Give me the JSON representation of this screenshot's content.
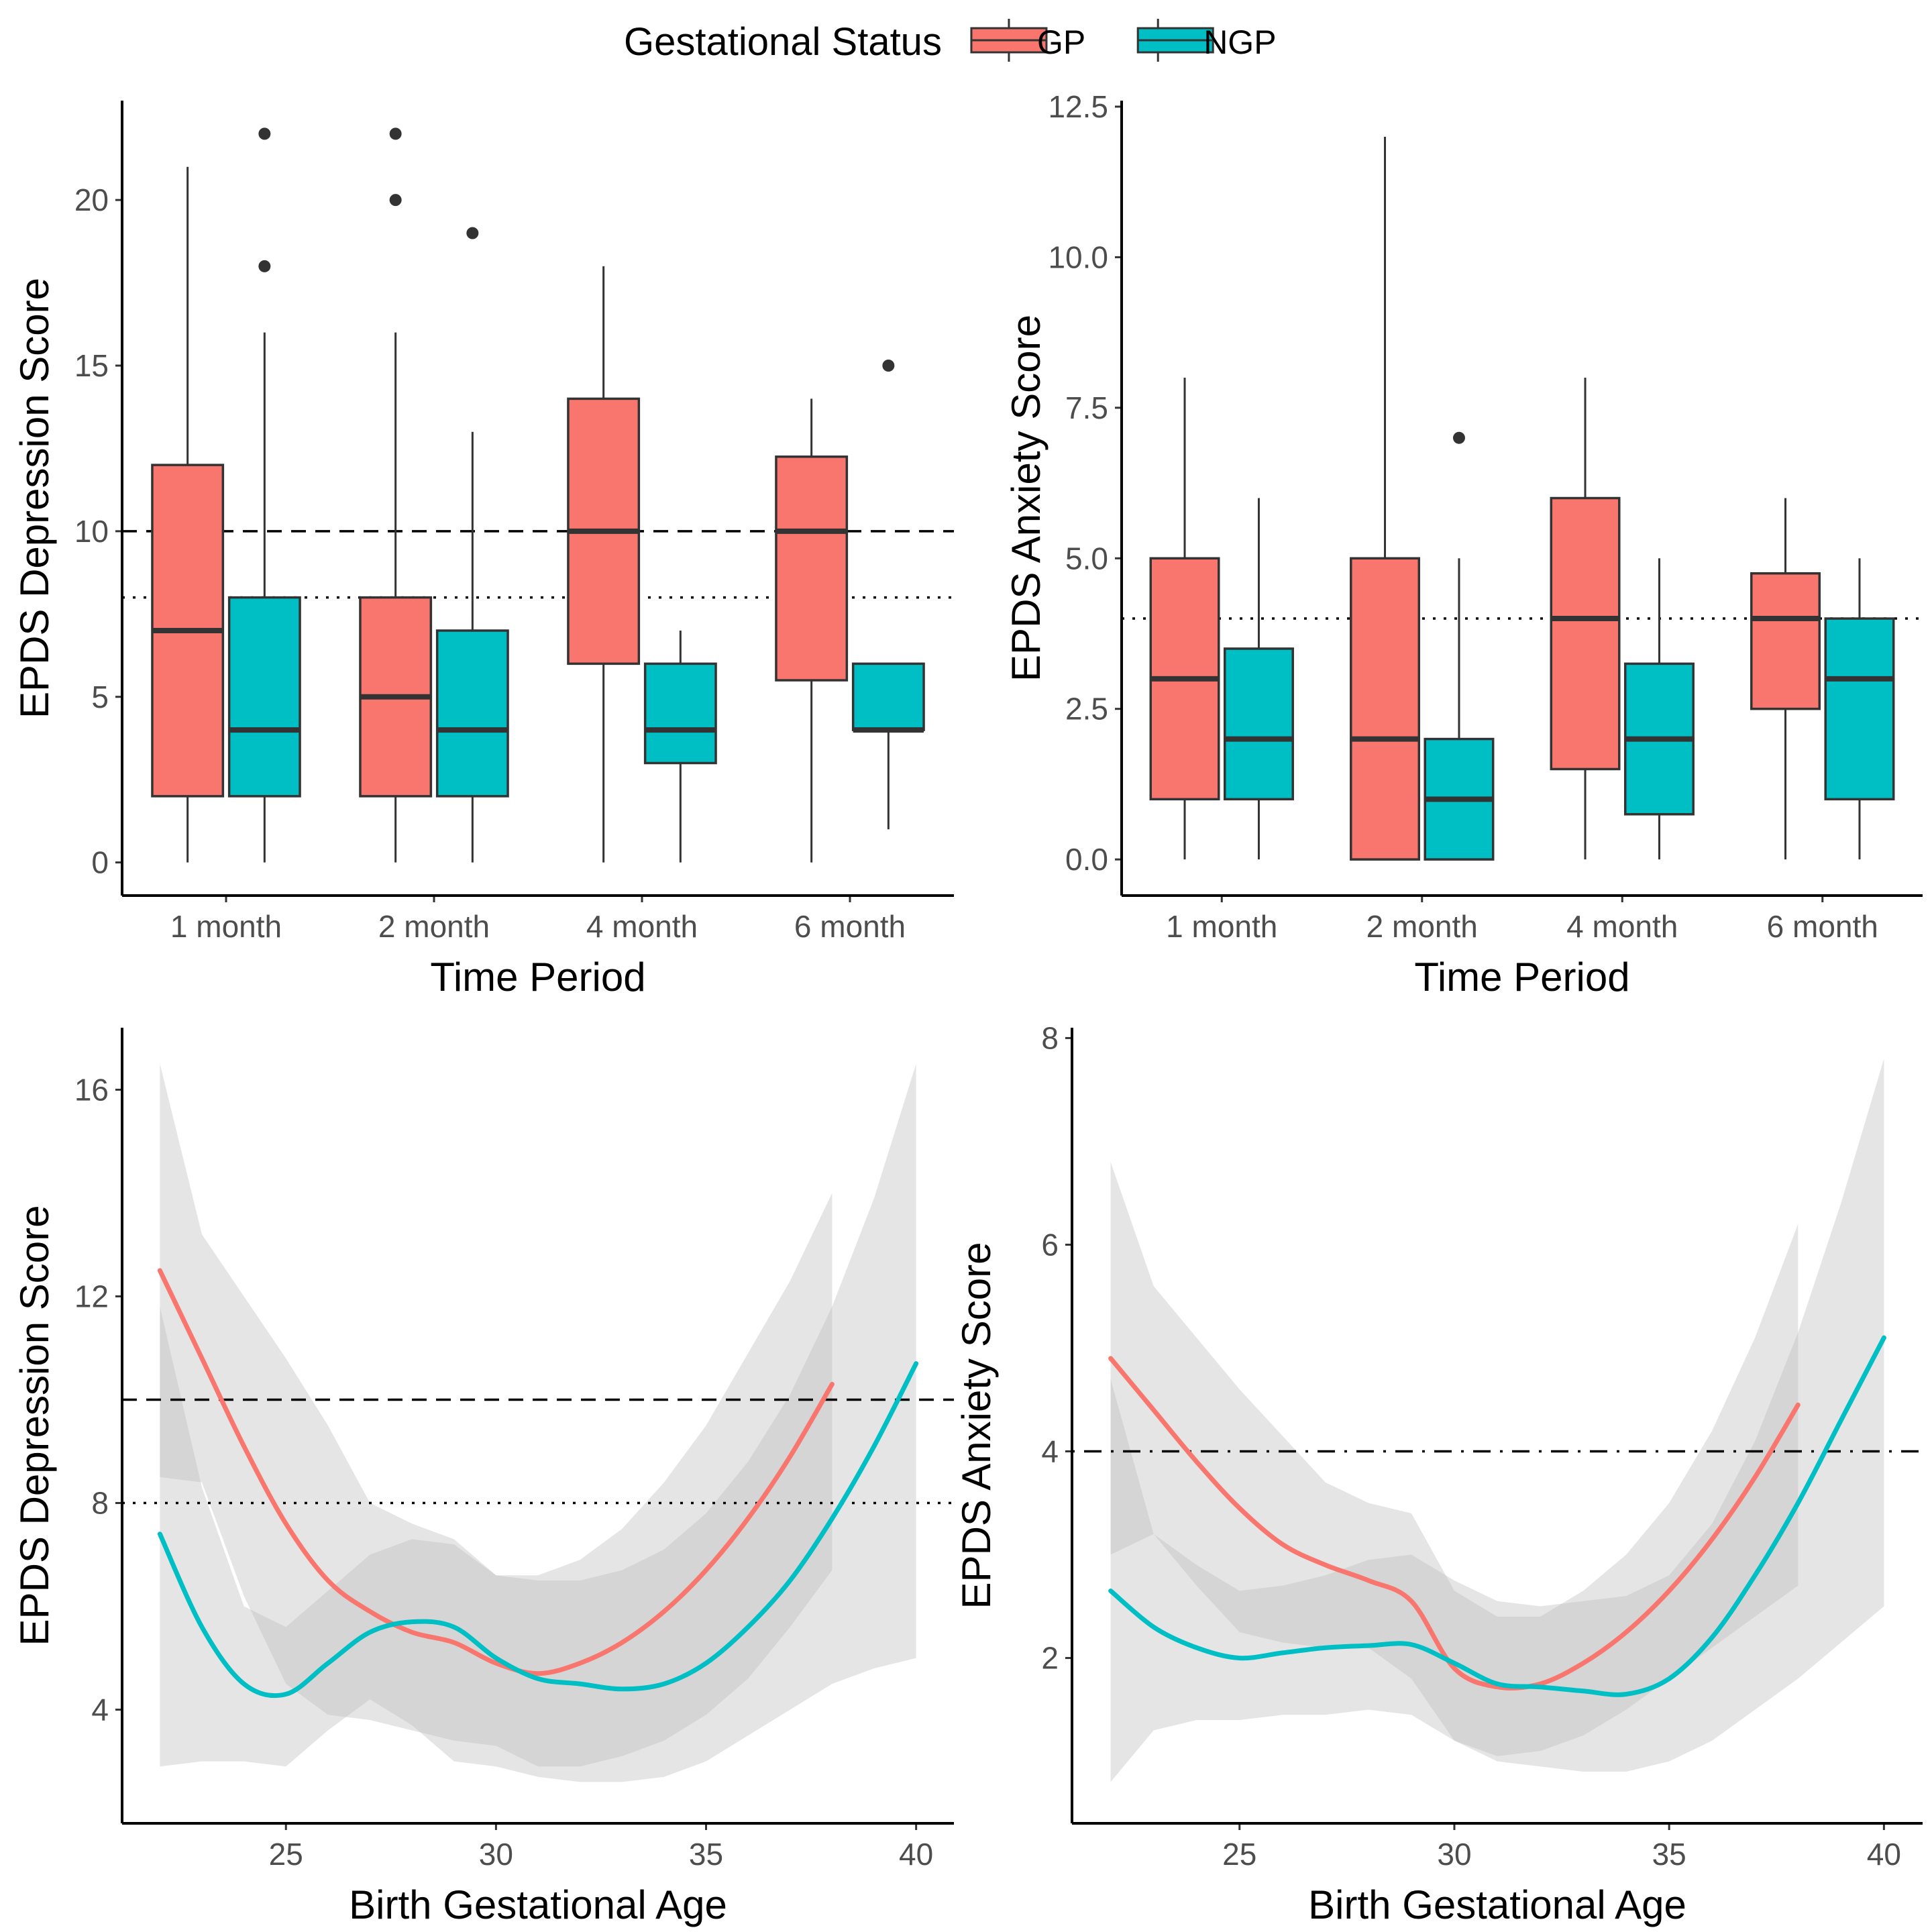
{
  "legend": {
    "title": "Gestational Status",
    "items": [
      {
        "label": "GP",
        "color": "#F8766D"
      },
      {
        "label": "NGP",
        "color": "#00BFC4"
      }
    ],
    "position": "top-center"
  },
  "colors": {
    "GP": "#F8766D",
    "NGP": "#00BFC4",
    "band": "#bdbdbd"
  },
  "chart_data": [
    {
      "id": "dep-box",
      "type": "box",
      "xlabel": "Time Period",
      "ylabel": "EPDS Depression Score",
      "ylim": [
        -1,
        23
      ],
      "yticks": [
        0,
        5,
        10,
        15,
        20
      ],
      "categories": [
        "1 month",
        "2 month",
        "4 month",
        "6 month"
      ],
      "reference_lines": [
        {
          "y": 10,
          "style": "dashed"
        },
        {
          "y": 8,
          "style": "dotted"
        }
      ],
      "series": [
        {
          "name": "GP",
          "boxes": [
            {
              "min": 0,
              "q1": 2,
              "median": 7,
              "q3": 12,
              "max": 21,
              "outliers": []
            },
            {
              "min": 0,
              "q1": 2,
              "median": 5,
              "q3": 8,
              "max": 16,
              "outliers": [
                20,
                22
              ]
            },
            {
              "min": 0,
              "q1": 6,
              "median": 10,
              "q3": 14,
              "max": 18,
              "outliers": []
            },
            {
              "min": 0,
              "q1": 5.5,
              "median": 10,
              "q3": 12.25,
              "max": 14,
              "outliers": []
            }
          ]
        },
        {
          "name": "NGP",
          "boxes": [
            {
              "min": 0,
              "q1": 2,
              "median": 4,
              "q3": 8,
              "max": 16,
              "outliers": [
                18,
                22
              ]
            },
            {
              "min": 0,
              "q1": 2,
              "median": 4,
              "q3": 7,
              "max": 13,
              "outliers": [
                19
              ]
            },
            {
              "min": 0,
              "q1": 3,
              "median": 4,
              "q3": 6,
              "max": 7,
              "outliers": []
            },
            {
              "min": 1,
              "q1": 4,
              "median": 4,
              "q3": 6,
              "max": 6,
              "outliers": [
                15
              ]
            }
          ]
        }
      ]
    },
    {
      "id": "anx-box",
      "type": "box",
      "xlabel": "Time Period",
      "ylabel": "EPDS Anxiety Score",
      "ylim": [
        -0.6,
        12.6
      ],
      "yticks": [
        0.0,
        2.5,
        5.0,
        7.5,
        10.0,
        12.5
      ],
      "ytick_labels": [
        "0.0",
        "2.5",
        "5.0",
        "7.5",
        "10.0",
        "12.5"
      ],
      "categories": [
        "1 month",
        "2 month",
        "4 month",
        "6 month"
      ],
      "reference_lines": [
        {
          "y": 4,
          "style": "dotted"
        }
      ],
      "series": [
        {
          "name": "GP",
          "boxes": [
            {
              "min": 0,
              "q1": 1,
              "median": 3,
              "q3": 5,
              "max": 8,
              "outliers": []
            },
            {
              "min": 0,
              "q1": 0,
              "median": 2,
              "q3": 5,
              "max": 12,
              "outliers": []
            },
            {
              "min": 0,
              "q1": 1.5,
              "median": 4,
              "q3": 6,
              "max": 8,
              "outliers": []
            },
            {
              "min": 0,
              "q1": 2.5,
              "median": 4,
              "q3": 4.75,
              "max": 6,
              "outliers": []
            }
          ]
        },
        {
          "name": "NGP",
          "boxes": [
            {
              "min": 0,
              "q1": 1,
              "median": 2,
              "q3": 3.5,
              "max": 6,
              "outliers": []
            },
            {
              "min": 0,
              "q1": 0,
              "median": 1,
              "q3": 2,
              "max": 5,
              "outliers": [
                7
              ]
            },
            {
              "min": 0,
              "q1": 0.75,
              "median": 2,
              "q3": 3.25,
              "max": 5,
              "outliers": []
            },
            {
              "min": 0,
              "q1": 1,
              "median": 3,
              "q3": 4,
              "max": 5,
              "outliers": []
            }
          ]
        }
      ]
    },
    {
      "id": "dep-smooth",
      "type": "line",
      "xlabel": "Birth Gestational Age",
      "ylabel": "EPDS Depression Score",
      "xlim": [
        21.1,
        40.9
      ],
      "ylim": [
        1.8,
        17.2
      ],
      "xticks": [
        25,
        30,
        35,
        40
      ],
      "yticks": [
        4,
        8,
        12,
        16
      ],
      "reference_lines": [
        {
          "y": 10,
          "style": "dashed"
        },
        {
          "y": 8,
          "style": "dotted"
        }
      ],
      "series": [
        {
          "name": "GP",
          "x": [
            22,
            23,
            24,
            25,
            26,
            27,
            28,
            29,
            30,
            31,
            32,
            33,
            34,
            35,
            36,
            37,
            38
          ],
          "y": [
            12.5,
            10.8,
            9.1,
            7.6,
            6.5,
            5.9,
            5.5,
            5.3,
            4.9,
            4.7,
            4.9,
            5.3,
            5.9,
            6.7,
            7.7,
            8.9,
            10.3
          ],
          "lower": [
            8.5,
            8.4,
            6.2,
            4.5,
            3.9,
            3.8,
            3.6,
            3.4,
            3.3,
            2.9,
            2.9,
            3.1,
            3.4,
            3.9,
            4.6,
            5.6,
            6.7
          ],
          "upper": [
            16.5,
            13.2,
            12.0,
            10.8,
            9.5,
            8.0,
            7.6,
            7.3,
            6.6,
            6.6,
            6.9,
            7.5,
            8.4,
            9.5,
            10.9,
            12.3,
            14.0
          ]
        },
        {
          "name": "NGP",
          "x": [
            22,
            23,
            24,
            25,
            26,
            27,
            28,
            29,
            30,
            31,
            32,
            33,
            34,
            35,
            36,
            37,
            38,
            39,
            40
          ],
          "y": [
            7.4,
            5.6,
            4.5,
            4.3,
            4.9,
            5.5,
            5.7,
            5.6,
            5.0,
            4.6,
            4.5,
            4.4,
            4.5,
            4.9,
            5.6,
            6.5,
            7.7,
            9.1,
            10.7
          ],
          "lower": [
            2.9,
            3.0,
            3.0,
            2.9,
            3.6,
            4.2,
            3.7,
            3.0,
            2.9,
            2.7,
            2.6,
            2.6,
            2.7,
            3.0,
            3.5,
            4.0,
            4.5,
            4.8,
            5.0
          ],
          "upper": [
            11.8,
            8.3,
            6.0,
            5.6,
            6.3,
            7.0,
            7.3,
            7.2,
            6.6,
            6.5,
            6.5,
            6.7,
            7.1,
            7.8,
            8.8,
            10.1,
            11.8,
            13.9,
            16.5
          ]
        }
      ]
    },
    {
      "id": "anx-smooth",
      "type": "line",
      "xlabel": "Birth Gestational Age",
      "ylabel": "EPDS Anxiety Score",
      "xlim": [
        21.1,
        40.9
      ],
      "ylim": [
        0.4,
        8.1
      ],
      "xticks": [
        25,
        30,
        35,
        40
      ],
      "yticks": [
        2,
        4,
        6,
        8
      ],
      "reference_lines": [
        {
          "y": 4,
          "style": "dotdash"
        }
      ],
      "series": [
        {
          "name": "GP",
          "x": [
            22,
            23,
            24,
            25,
            26,
            27,
            28,
            29,
            30,
            31,
            32,
            33,
            34,
            35,
            36,
            37,
            38
          ],
          "y": [
            4.9,
            4.4,
            3.9,
            3.45,
            3.1,
            2.9,
            2.75,
            2.55,
            1.9,
            1.72,
            1.75,
            1.95,
            2.25,
            2.65,
            3.15,
            3.75,
            4.45
          ],
          "lower": [
            3.0,
            3.2,
            2.7,
            2.25,
            2.15,
            2.1,
            2.1,
            1.8,
            1.2,
            1.05,
            1.1,
            1.25,
            1.5,
            1.8,
            2.1,
            2.4,
            2.7
          ],
          "upper": [
            6.8,
            5.6,
            5.1,
            4.6,
            4.15,
            3.7,
            3.5,
            3.4,
            2.65,
            2.4,
            2.4,
            2.65,
            3.0,
            3.5,
            4.2,
            5.1,
            6.2
          ]
        },
        {
          "name": "NGP",
          "x": [
            22,
            23,
            24,
            25,
            26,
            27,
            28,
            29,
            30,
            31,
            32,
            33,
            34,
            35,
            36,
            37,
            38,
            39,
            40
          ],
          "y": [
            2.65,
            2.3,
            2.1,
            2.0,
            2.05,
            2.1,
            2.12,
            2.13,
            1.95,
            1.75,
            1.72,
            1.68,
            1.65,
            1.8,
            2.2,
            2.8,
            3.5,
            4.3,
            5.1
          ],
          "lower": [
            0.8,
            1.3,
            1.4,
            1.4,
            1.45,
            1.45,
            1.5,
            1.45,
            1.2,
            1.0,
            0.95,
            0.9,
            0.9,
            1.0,
            1.2,
            1.5,
            1.8,
            2.15,
            2.5
          ],
          "upper": [
            4.7,
            3.2,
            2.9,
            2.65,
            2.7,
            2.8,
            2.95,
            3.0,
            2.75,
            2.55,
            2.5,
            2.55,
            2.6,
            2.8,
            3.3,
            4.1,
            5.15,
            6.4,
            7.8
          ]
        }
      ]
    }
  ]
}
